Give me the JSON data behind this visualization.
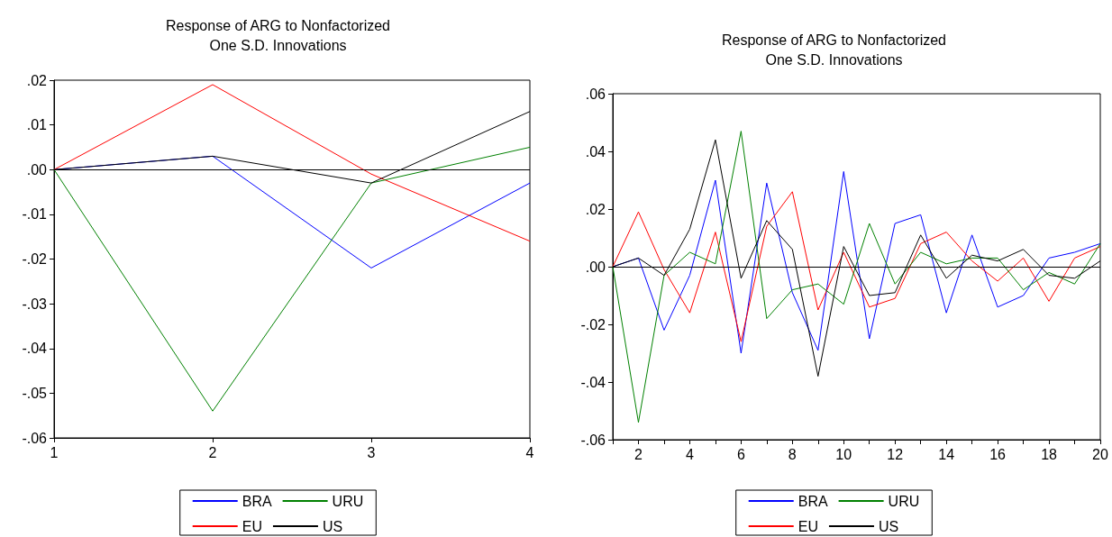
{
  "chart_data": [
    {
      "type": "line",
      "title": "Response of ARG to Nonfactorized\nOne S.D. Innovations",
      "x": [
        1,
        2,
        3,
        4
      ],
      "xlim": [
        1,
        4
      ],
      "xticks": [
        1,
        2,
        3,
        4
      ],
      "ylim": [
        -0.06,
        0.02
      ],
      "yticks": [
        {
          "value": -0.06,
          "label": "-.06"
        },
        {
          "value": -0.05,
          "label": "-.05"
        },
        {
          "value": -0.04,
          "label": "-.04"
        },
        {
          "value": -0.03,
          "label": "-.03"
        },
        {
          "value": -0.02,
          "label": "-.02"
        },
        {
          "value": -0.01,
          "label": "-.01"
        },
        {
          "value": 0,
          "label": ".00"
        },
        {
          "value": 0.01,
          "label": ".01"
        },
        {
          "value": 0.02,
          "label": ".02"
        }
      ],
      "grid": false,
      "legend": "bottom",
      "marker": "none",
      "line_style": "solid",
      "ref_lines": [
        {
          "axis": "y",
          "value": 0,
          "color": "#000000"
        }
      ],
      "series": [
        {
          "name": "BRA",
          "color": "#0000ff",
          "values": [
            0,
            0.003,
            -0.022,
            -0.003
          ]
        },
        {
          "name": "EU",
          "color": "#ff0000",
          "values": [
            0,
            0.019,
            -0.001,
            -0.016
          ]
        },
        {
          "name": "URU",
          "color": "#008000",
          "values": [
            0,
            -0.054,
            -0.003,
            0.005
          ]
        },
        {
          "name": "US",
          "color": "#000000",
          "values": [
            0,
            0.003,
            -0.003,
            0.013
          ]
        }
      ]
    },
    {
      "type": "line",
      "title": "Response of ARG to Nonfactorized\nOne S.D. Innovations",
      "x": [
        1,
        2,
        3,
        4,
        5,
        6,
        7,
        8,
        9,
        10,
        11,
        12,
        13,
        14,
        15,
        16,
        17,
        18,
        19,
        20
      ],
      "xlim": [
        1,
        20
      ],
      "xticks": [
        {
          "value": 1,
          "label": null
        },
        2,
        {
          "value": 3,
          "label": null
        },
        4,
        {
          "value": 5,
          "label": null
        },
        6,
        {
          "value": 7,
          "label": null
        },
        8,
        {
          "value": 9,
          "label": null
        },
        10,
        {
          "value": 11,
          "label": null
        },
        12,
        {
          "value": 13,
          "label": null
        },
        14,
        {
          "value": 15,
          "label": null
        },
        16,
        {
          "value": 17,
          "label": null
        },
        18,
        {
          "value": 19,
          "label": null
        },
        20
      ],
      "ylim": [
        -0.06,
        0.06
      ],
      "yticks": [
        {
          "value": -0.06,
          "label": "-.06"
        },
        {
          "value": -0.04,
          "label": "-.04"
        },
        {
          "value": -0.02,
          "label": "-.02"
        },
        {
          "value": 0,
          "label": ".00"
        },
        {
          "value": 0.02,
          "label": ".02"
        },
        {
          "value": 0.04,
          "label": ".04"
        },
        {
          "value": 0.06,
          "label": ".06"
        }
      ],
      "grid": false,
      "legend": "bottom",
      "marker": "none",
      "line_style": "solid",
      "ref_lines": [
        {
          "axis": "y",
          "value": 0,
          "color": "#000000"
        }
      ],
      "series": [
        {
          "name": "BRA",
          "color": "#0000ff",
          "values": [
            0,
            0.003,
            -0.022,
            -0.003,
            0.03,
            -0.03,
            0.029,
            -0.009,
            -0.029,
            0.033,
            -0.025,
            0.015,
            0.018,
            -0.016,
            0.011,
            -0.014,
            -0.01,
            0.003,
            0.005,
            0.008
          ]
        },
        {
          "name": "EU",
          "color": "#ff0000",
          "values": [
            0,
            0.019,
            -0.001,
            -0.016,
            0.012,
            -0.026,
            0.014,
            0.026,
            -0.015,
            0.005,
            -0.014,
            -0.011,
            0.008,
            0.012,
            0.002,
            -0.005,
            0.003,
            -0.012,
            0.003,
            0.007
          ]
        },
        {
          "name": "URU",
          "color": "#008000",
          "values": [
            0,
            -0.054,
            -0.003,
            0.005,
            0.001,
            0.047,
            -0.018,
            -0.008,
            -0.006,
            -0.013,
            0.015,
            -0.006,
            0.005,
            0.001,
            0.003,
            0.003,
            -0.008,
            -0.002,
            -0.006,
            0.008
          ]
        },
        {
          "name": "US",
          "color": "#000000",
          "values": [
            0,
            0.003,
            -0.003,
            0.013,
            0.044,
            -0.004,
            0.016,
            0.006,
            -0.038,
            0.007,
            -0.01,
            -0.009,
            0.011,
            -0.004,
            0.004,
            0.002,
            0.006,
            -0.003,
            -0.004,
            0.002
          ]
        }
      ]
    }
  ]
}
